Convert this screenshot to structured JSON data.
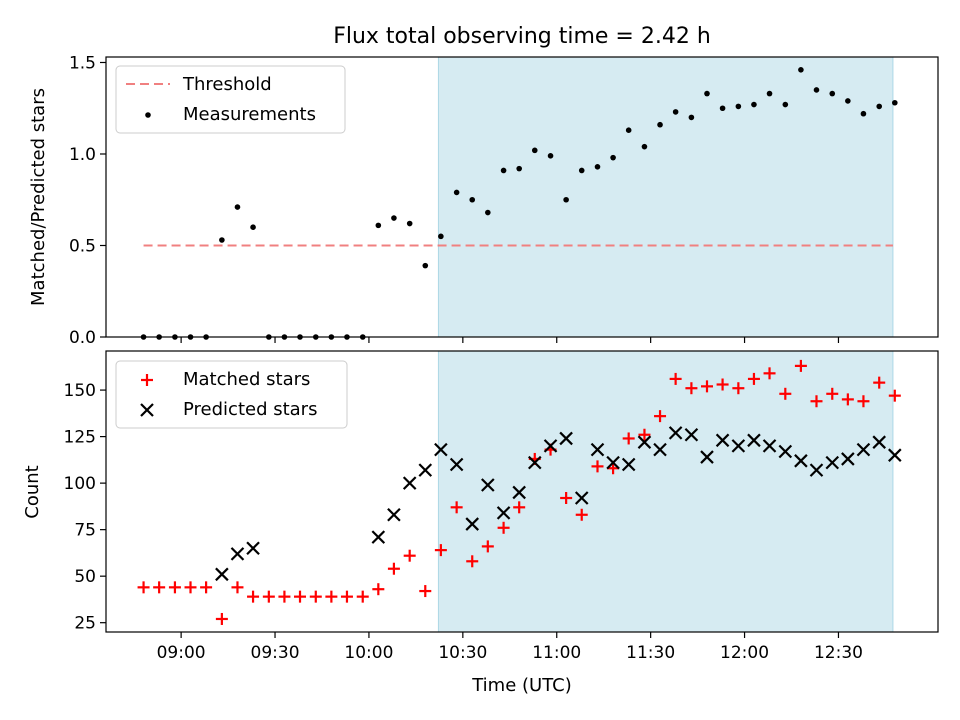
{
  "chart_data": {
    "title": "Flux total observing time = 2.42 h",
    "xlabel": "Time (UTC)",
    "x_ticks": [
      "09:00",
      "09:30",
      "10:00",
      "10:30",
      "11:00",
      "11:30",
      "12:00",
      "12:30"
    ],
    "x_tick_hours": [
      9.0,
      9.5,
      10.0,
      10.5,
      11.0,
      11.5,
      12.0,
      12.5
    ],
    "xlim_hours": [
      8.6,
      13.03
    ],
    "highlight_span_hours": [
      10.37,
      12.79
    ],
    "colors": {
      "threshold": "#f08080",
      "measurements": "#000000",
      "matched": "#ff0000",
      "predicted": "#000000",
      "span": "#add8e6"
    },
    "top": {
      "type": "scatter",
      "ylabel": "Matched/Predicted stars",
      "ylim": [
        0,
        1.53
      ],
      "y_ticks": [
        "0.0",
        "0.5",
        "1.0",
        "1.5"
      ],
      "y_tick_values": [
        0.0,
        0.5,
        1.0,
        1.5
      ],
      "threshold": {
        "label": "Threshold",
        "value": 0.5,
        "x_range_hours": [
          8.8,
          12.79
        ]
      },
      "measurements_label": "Measurements",
      "t": [
        8.8,
        8.883,
        8.967,
        9.05,
        9.133,
        9.217,
        9.3,
        9.383,
        9.467,
        9.55,
        9.633,
        9.717,
        9.8,
        9.883,
        9.967,
        10.05,
        10.133,
        10.217,
        10.3,
        10.383,
        10.467,
        10.55,
        10.633,
        10.717,
        10.8,
        10.883,
        10.967,
        11.05,
        11.133,
        11.217,
        11.3,
        11.383,
        11.467,
        11.55,
        11.633,
        11.717,
        11.8,
        11.883,
        11.967,
        12.05,
        12.133,
        12.217,
        12.3,
        12.383,
        12.467,
        12.55,
        12.633,
        12.717,
        12.8
      ],
      "ratio": [
        0.0,
        0.0,
        0.0,
        0.0,
        0.0,
        0.53,
        0.71,
        0.6,
        0.0,
        0.0,
        0.0,
        0.0,
        0.0,
        0.0,
        0.0,
        0.61,
        0.65,
        0.62,
        0.39,
        0.55,
        0.79,
        0.75,
        0.68,
        0.91,
        0.92,
        1.02,
        0.99,
        0.75,
        0.91,
        0.93,
        0.98,
        1.13,
        1.04,
        1.16,
        1.23,
        1.2,
        1.33,
        1.25,
        1.26,
        1.27,
        1.33,
        1.27,
        1.46,
        1.35,
        1.33,
        1.29,
        1.22,
        1.26,
        1.28
      ]
    },
    "bottom": {
      "type": "scatter",
      "ylabel": "Count",
      "ylim": [
        20,
        171
      ],
      "y_ticks": [
        "25",
        "50",
        "75",
        "100",
        "125",
        "150"
      ],
      "y_tick_values": [
        25,
        50,
        75,
        100,
        125,
        150
      ],
      "series": [
        {
          "name": "Matched stars",
          "marker": "plus",
          "values": [
            44,
            44,
            44,
            44,
            44,
            27,
            44,
            39,
            39,
            39,
            39,
            39,
            39,
            39,
            39,
            43,
            54,
            61,
            42,
            64,
            87,
            58,
            66,
            76,
            87,
            113,
            118,
            92,
            83,
            109,
            108,
            124,
            126,
            136,
            156,
            151,
            152,
            153,
            151,
            156,
            159,
            148,
            163,
            144,
            148,
            145,
            144,
            154,
            147
          ]
        },
        {
          "name": "Predicted stars",
          "marker": "x",
          "values": [
            null,
            null,
            null,
            null,
            null,
            51,
            62,
            65,
            null,
            null,
            null,
            null,
            null,
            null,
            null,
            71,
            83,
            100,
            107,
            118,
            110,
            78,
            99,
            84,
            95,
            111,
            120,
            124,
            92,
            118,
            111,
            110,
            122,
            118,
            127,
            126,
            114,
            123,
            120,
            123,
            120,
            117,
            112,
            107,
            111,
            113,
            118,
            122,
            115
          ]
        }
      ]
    }
  }
}
